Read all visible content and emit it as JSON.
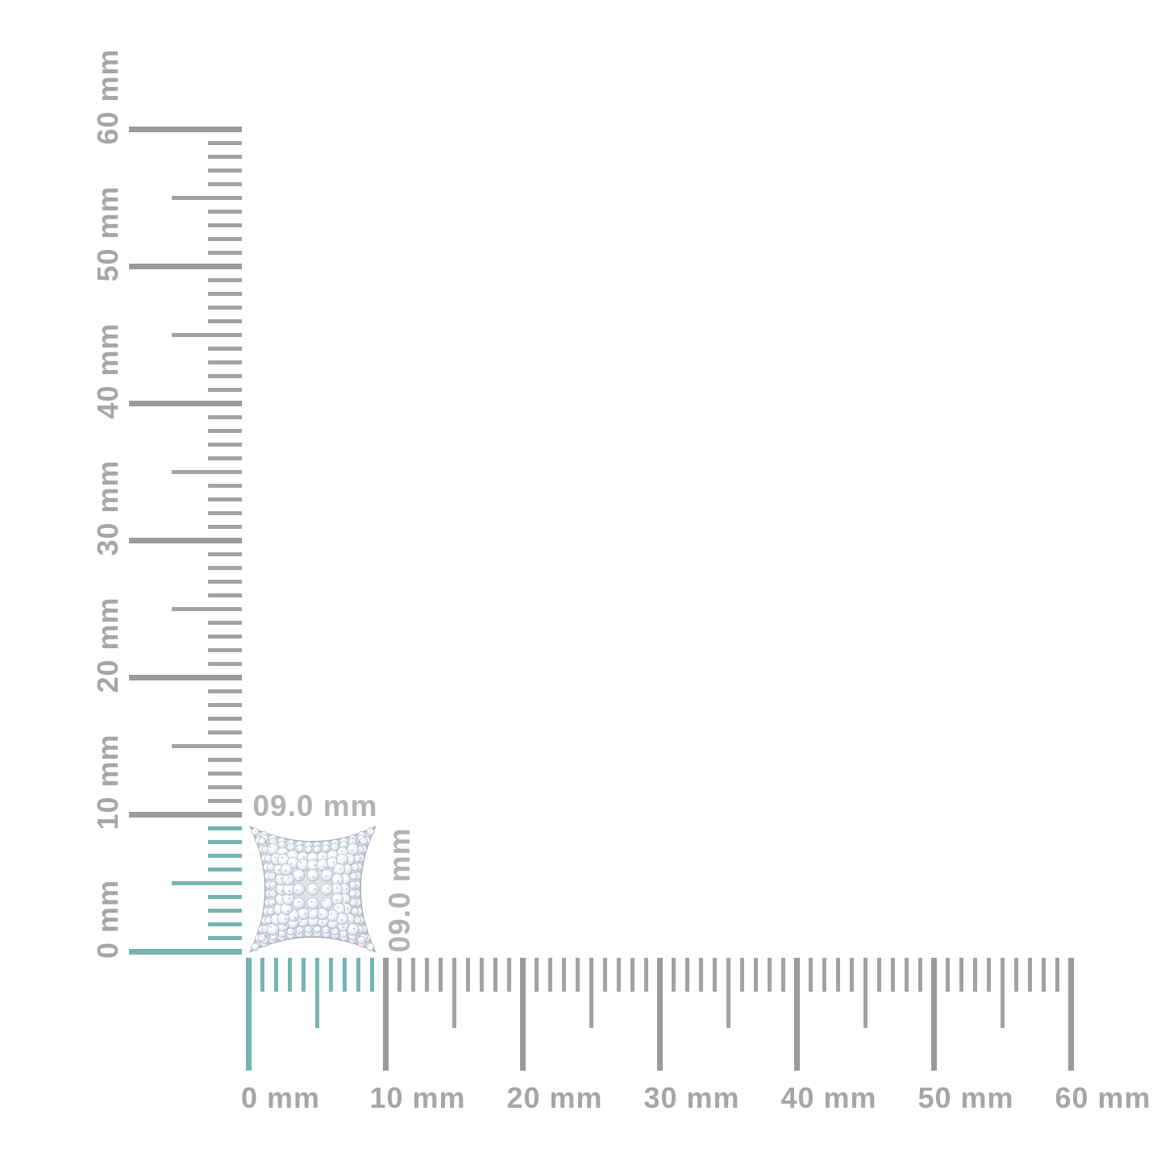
{
  "page": {
    "background": "#ffffff",
    "alt": "diamond pave concave-square stud earring shown against millimeter rulers"
  },
  "rulers": {
    "unit": "mm",
    "max_mm": 60,
    "minor_tick_mm": 1,
    "mid_tick_mm": 5,
    "major_tick_mm": 10,
    "labels": [
      "0 mm",
      "10 mm",
      "20 mm",
      "30 mm",
      "40 mm",
      "50 mm",
      "60 mm"
    ],
    "highlight_mm": 9,
    "colors": {
      "tick_gray": "#a2a2a2",
      "tick_major_gray": "#9a9a9a",
      "highlight_teal": "#74b5af",
      "label_gray": "#a6a6a6"
    }
  },
  "measurement": {
    "width_label": "09.0 mm",
    "height_label": "09.0 mm",
    "label_color": "#b3b3b3"
  }
}
